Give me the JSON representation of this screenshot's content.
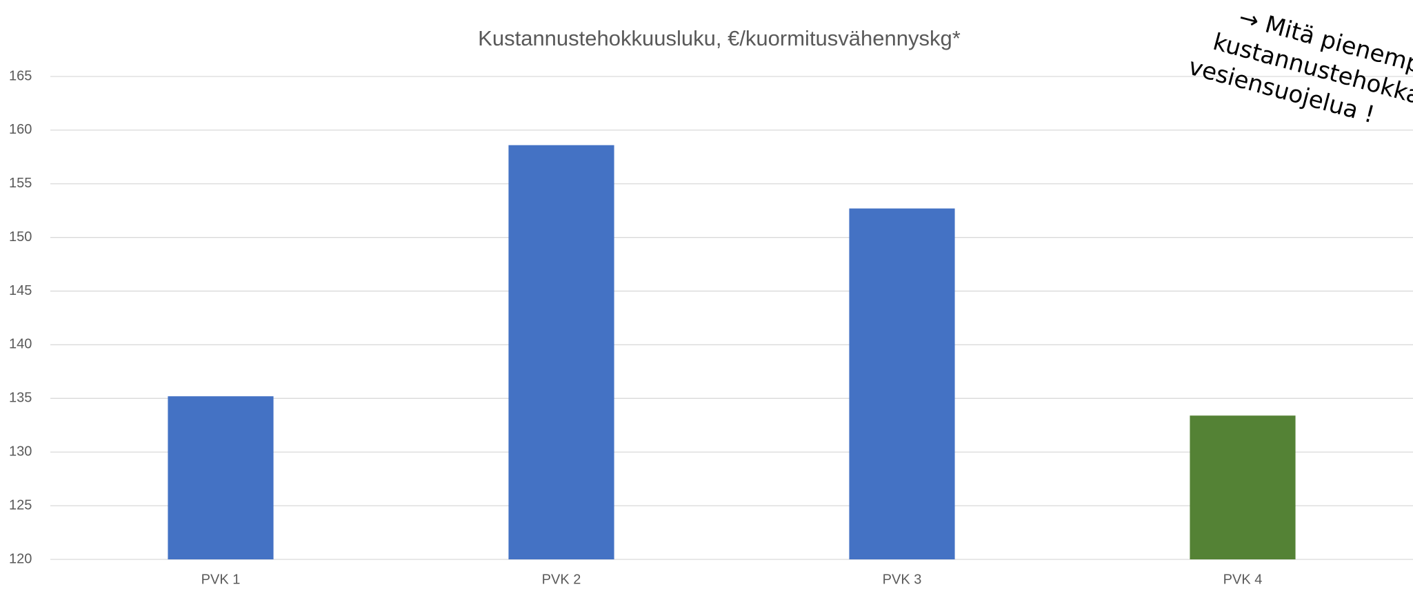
{
  "chart_data": {
    "type": "bar",
    "title": "Kustannustehokkuusluku, €/kuormitusvähennyskg*",
    "categories": [
      "PVK 1",
      "PVK 2",
      "PVK 3",
      "PVK 4"
    ],
    "values": [
      135.2,
      158.6,
      152.7,
      133.4
    ],
    "colors": [
      "#4472c4",
      "#4472c4",
      "#4472c4",
      "#548235"
    ],
    "ylim": [
      120,
      165
    ],
    "yticks": [
      120,
      125,
      130,
      135,
      140,
      145,
      150,
      155,
      160,
      165
    ],
    "grid": true,
    "annotation": [
      "→ Mitä pienemp",
      "kustannustehokka",
      "vesiensuojelua !"
    ]
  }
}
